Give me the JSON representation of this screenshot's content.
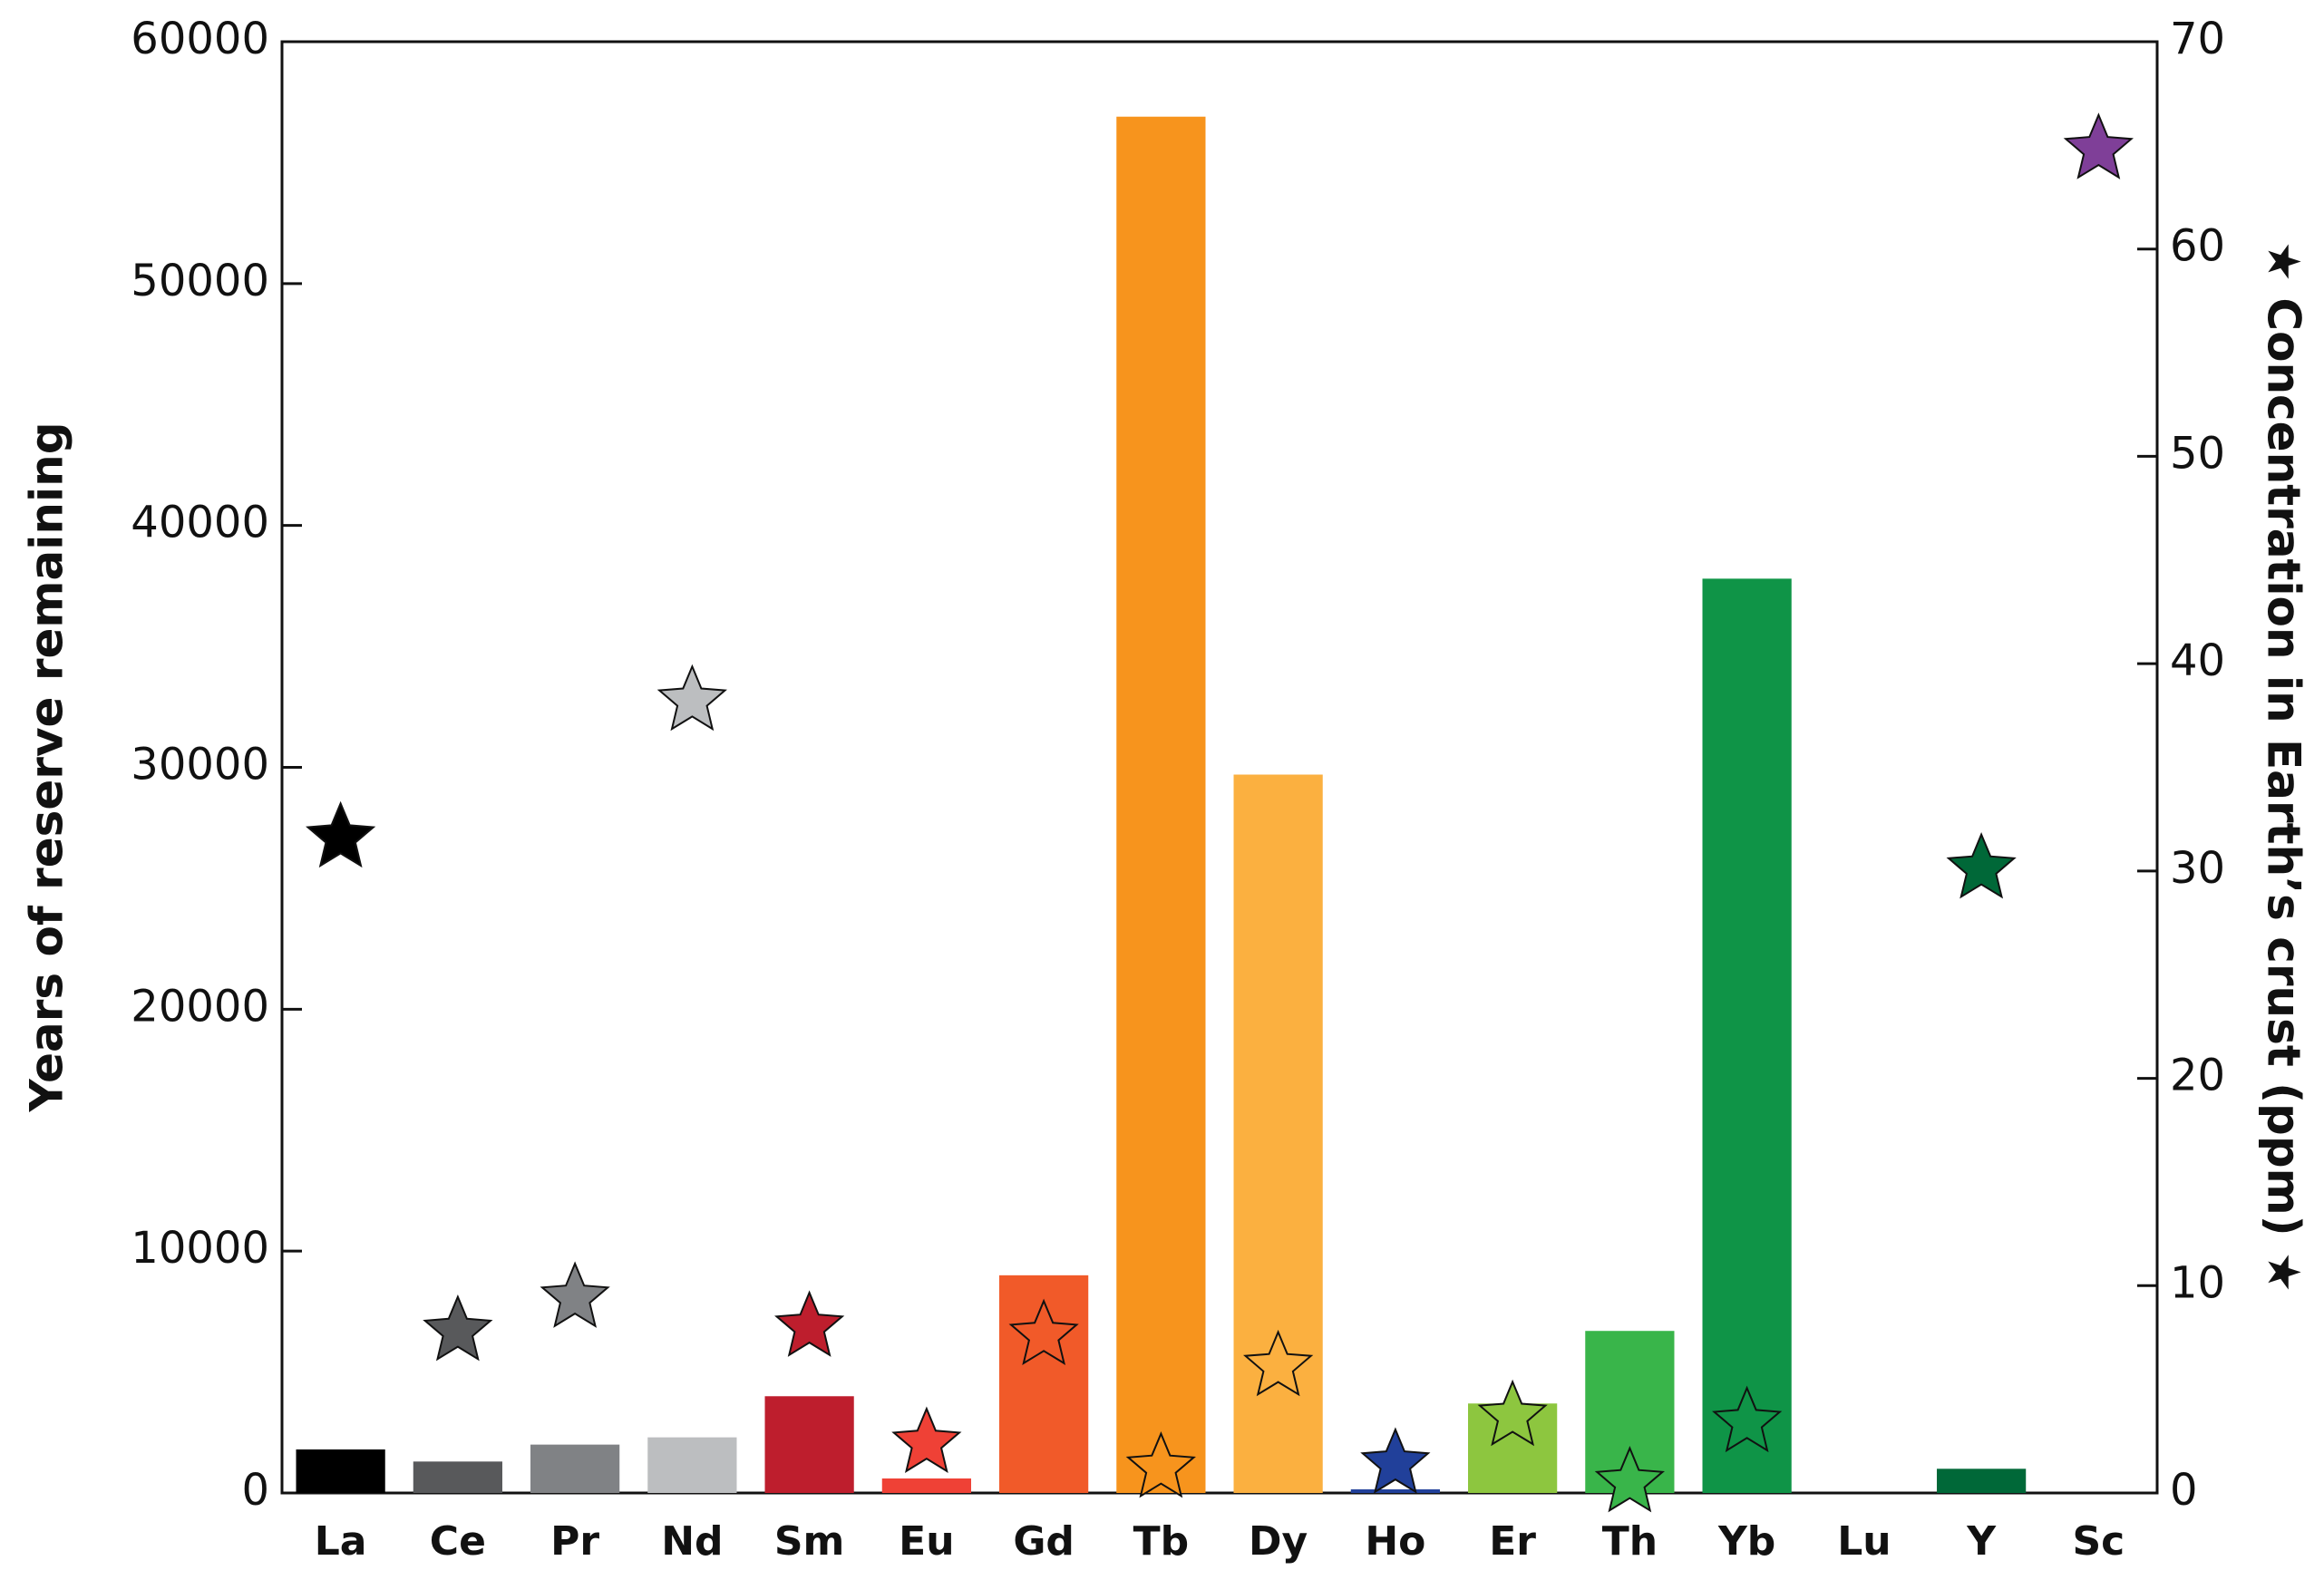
{
  "chart_data": {
    "type": "bar_star",
    "y_label": "Years of reserve remaining",
    "y2_label": "★ Concentration in Earth’s crust (ppm) ★",
    "categories": [
      "La",
      "Ce",
      "Pr",
      "Nd",
      "Sm",
      "Eu",
      "Gd",
      "Tb",
      "Dy",
      "Ho",
      "Er",
      "Th",
      "Yb",
      "Lu",
      "Y",
      "Sc"
    ],
    "colors": [
      "#000000",
      "#58595b",
      "#808285",
      "#bcbec0",
      "#be1e2d",
      "#ef4136",
      "#f15a29",
      "#f7941d",
      "#fbb040",
      "#21409a",
      "#8dc63f",
      "#39b54a",
      "#0f9447",
      "#1a7a40",
      "#006838",
      "#7f3f98"
    ],
    "series": [
      {
        "values": [
          1800,
          1300,
          2000,
          2300,
          4000,
          600,
          9000,
          56900,
          29700,
          150,
          3700,
          6700,
          37800,
          null,
          1000,
          null
        ],
        "axis": "y"
      },
      {
        "values": [
          31.6,
          7.8,
          9.4,
          38.2,
          8,
          2.4,
          7.6,
          1.2,
          6.1,
          1.4,
          3.7,
          0.5,
          3.4,
          null,
          30.1,
          64.8
        ],
        "axis": "y2"
      }
    ],
    "ylim": [
      0,
      60000
    ],
    "yticks": [
      0,
      10000,
      20000,
      30000,
      40000,
      50000,
      60000
    ],
    "y2lim": [
      0,
      70
    ],
    "y2ticks": [
      0,
      10,
      20,
      30,
      40,
      50,
      60,
      70
    ]
  }
}
